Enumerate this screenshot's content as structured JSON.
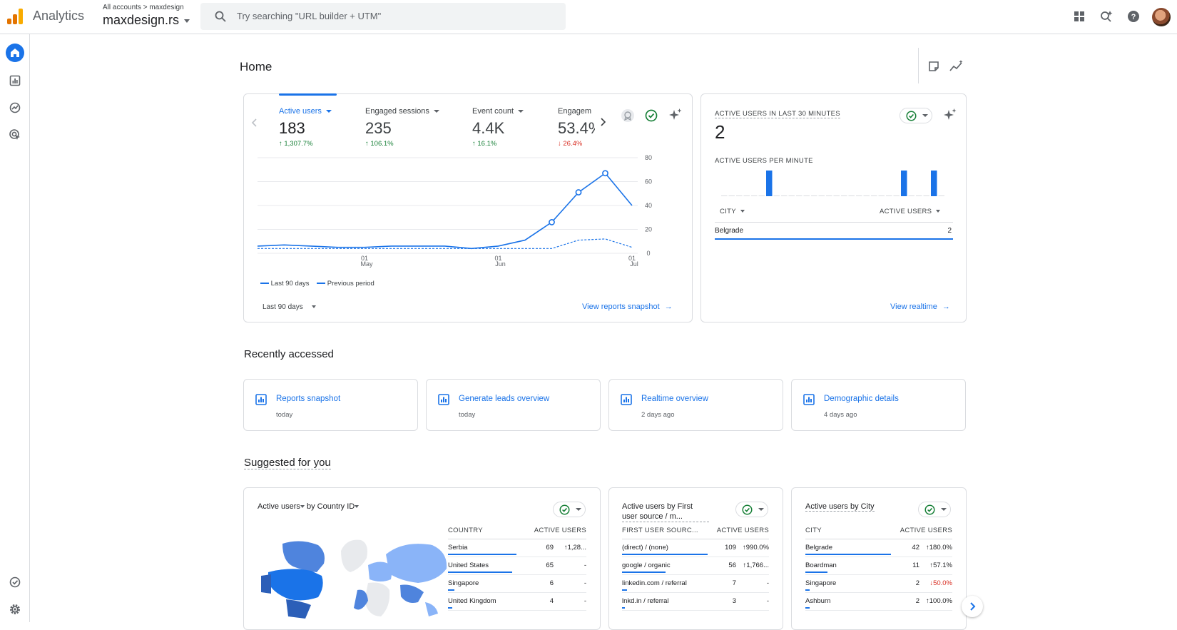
{
  "header": {
    "app_title": "Analytics",
    "breadcrumb": "All accounts > maxdesign",
    "property": "maxdesign.rs",
    "search_placeholder": "Try searching \"URL builder + UTM\""
  },
  "page": {
    "title": "Home"
  },
  "summary_card": {
    "metrics": [
      {
        "label": "Active users",
        "value": "183",
        "change": "↑ 1,307.7%",
        "direction": "up"
      },
      {
        "label": "Engaged sessions",
        "value": "235",
        "change": "↑ 106.1%",
        "direction": "up"
      },
      {
        "label": "Event count",
        "value": "4.4K",
        "change": "↑ 16.1%",
        "direction": "up"
      },
      {
        "label": "Engagem",
        "value": "53.4%",
        "change": "↓ 26.4%",
        "direction": "down"
      }
    ],
    "date_range": "Last 90 days",
    "link": "View reports snapshot"
  },
  "chart_data": {
    "type": "line",
    "x_ticks": [
      {
        "day": "01",
        "month": "May",
        "index": 4
      },
      {
        "day": "01",
        "month": "Jun",
        "index": 9
      },
      {
        "day": "01",
        "month": "Jul",
        "index": 14
      }
    ],
    "y_ticks": [
      0,
      20,
      40,
      60,
      80
    ],
    "ylim": [
      0,
      80
    ],
    "series": [
      {
        "name": "Last 90 days",
        "style": "solid",
        "values": [
          6,
          7,
          6,
          5,
          5,
          6,
          6,
          6,
          4,
          6,
          11,
          26,
          51,
          67,
          40
        ],
        "markers": [
          11,
          12,
          13
        ]
      },
      {
        "name": "Previous period",
        "style": "dashed",
        "values": [
          4,
          4,
          4,
          4,
          4,
          4,
          4,
          4,
          4,
          4,
          4,
          4,
          11,
          12,
          5
        ]
      }
    ]
  },
  "realtime": {
    "title": "ACTIVE USERS IN LAST 30 MINUTES",
    "value": "2",
    "per_minute_label": "ACTIVE USERS PER MINUTE",
    "per_minute": [
      0,
      0,
      0,
      0,
      0,
      0,
      1,
      0,
      0,
      0,
      0,
      0,
      0,
      0,
      0,
      0,
      0,
      0,
      0,
      0,
      0,
      0,
      0,
      0,
      1,
      0,
      0,
      0,
      1,
      0
    ],
    "col_city": "CITY",
    "col_users": "ACTIVE USERS",
    "rows": [
      {
        "city": "Belgrade",
        "users": "2"
      }
    ],
    "link": "View realtime"
  },
  "recent": {
    "title": "Recently accessed",
    "items": [
      {
        "label": "Reports snapshot",
        "time": "today"
      },
      {
        "label": "Generate leads overview",
        "time": "today"
      },
      {
        "label": "Realtime overview",
        "time": "2 days ago"
      },
      {
        "label": "Demographic details",
        "time": "4 days ago"
      }
    ]
  },
  "suggested": {
    "title": "Suggested for you",
    "country_card": {
      "title_metric": "Active users",
      "title_dim": "by Country ID",
      "col_dim": "COUNTRY",
      "col_metric": "ACTIVE USERS",
      "rows": [
        {
          "name": "Serbia",
          "value": "69",
          "change": "↑1,28...",
          "share": 1.0
        },
        {
          "name": "United States",
          "value": "65",
          "change": "-",
          "share": 0.94
        },
        {
          "name": "Singapore",
          "value": "6",
          "change": "-",
          "share": 0.09
        },
        {
          "name": "United Kingdom",
          "value": "4",
          "change": "-",
          "share": 0.06
        }
      ]
    },
    "source_card": {
      "title": "Active users by First user source / m...",
      "col_dim": "FIRST USER SOURC...",
      "col_metric": "ACTIVE USERS",
      "rows": [
        {
          "name": "(direct) / (none)",
          "value": "109",
          "change": "↑990.0%",
          "share": 1.0
        },
        {
          "name": "google / organic",
          "value": "56",
          "change": "↑1,766...",
          "share": 0.51
        },
        {
          "name": "linkedin.com / referral",
          "value": "7",
          "change": "-",
          "share": 0.06
        },
        {
          "name": "lnkd.in / referral",
          "value": "3",
          "change": "-",
          "share": 0.03
        }
      ]
    },
    "city_card": {
      "title": "Active users by City",
      "col_dim": "CITY",
      "col_metric": "ACTIVE USERS",
      "rows": [
        {
          "name": "Belgrade",
          "value": "42",
          "change": "↑180.0%",
          "share": 1.0,
          "direction": "up"
        },
        {
          "name": "Boardman",
          "value": "11",
          "change": "↑57.1%",
          "share": 0.26,
          "direction": "up"
        },
        {
          "name": "Singapore",
          "value": "2",
          "change": "↓50.0%",
          "share": 0.05,
          "direction": "down"
        },
        {
          "name": "Ashburn",
          "value": "2",
          "change": "↑100.0%",
          "share": 0.05,
          "direction": "up"
        }
      ]
    }
  },
  "colors": {
    "accent": "#1a73e8",
    "up": "#188038",
    "down": "#d93025"
  }
}
